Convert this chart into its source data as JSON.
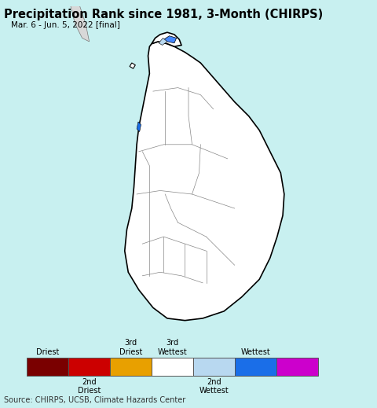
{
  "title": "Precipitation Rank since 1981, 3-Month (CHIRPS)",
  "subtitle": "Mar. 6 - Jun. 5, 2022 [final]",
  "background_color": "#c8f0f0",
  "map_interior_color": "#ffffff",
  "map_edge_color": "#000000",
  "map_edge_width": 1.2,
  "district_edge_color": "#888888",
  "district_edge_width": 0.5,
  "source_text": "Source: CHIRPS, UCSB, Climate Hazards Center",
  "legend_colors": [
    "#7a0000",
    "#cc0000",
    "#e8a000",
    "#ffffff",
    "#b8d8f0",
    "#1a6ee8",
    "#cc00cc"
  ],
  "fig_width": 4.8,
  "fig_height": 5.19,
  "dpi": 100,
  "title_fontsize": 10.5,
  "subtitle_fontsize": 7.5,
  "source_fontsize": 7
}
